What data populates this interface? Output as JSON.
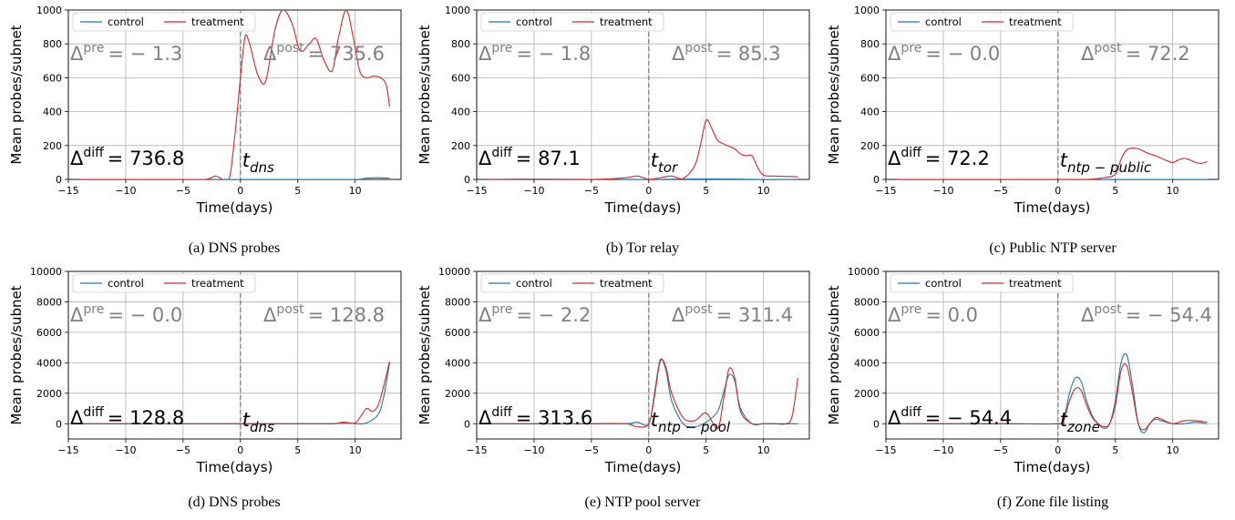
{
  "colors": {
    "control": "#1f77b4",
    "treatment": "#d62728",
    "annotation_gray": "#808080",
    "grid": "#b0b0b0",
    "event_line": "#808080"
  },
  "common": {
    "xlabel": "Time(days)",
    "ylabel": "Mean probes/subnet",
    "legend": [
      "control",
      "treatment"
    ]
  },
  "chart_data": [
    {
      "type": "line",
      "caption": "(a) DNS probes",
      "xlim": [
        -15,
        14
      ],
      "ylim": [
        0,
        1000
      ],
      "x_ticks": [
        -15,
        -10,
        -5,
        0,
        5,
        10
      ],
      "y_ticks": [
        0,
        200,
        400,
        600,
        800,
        1000
      ],
      "legend_position": "upper-left",
      "pre_label": "Δ",
      "pre_sup": "pre",
      "pre_value": "= − 1.3",
      "post_label": "Δ",
      "post_sup": "post",
      "post_value": "= 735.6",
      "diff_label": "Δ",
      "diff_sup": "diff",
      "diff_value": "= 736.8",
      "event_label": "t",
      "event_sub": "dns",
      "series": [
        {
          "name": "control",
          "x": [
            -14,
            -10,
            -5,
            0,
            5,
            10,
            11,
            12,
            13
          ],
          "y": [
            0,
            0,
            0,
            0,
            0,
            0,
            8,
            10,
            8
          ]
        },
        {
          "name": "treatment",
          "x": [
            -14,
            -5,
            -3,
            -2.2,
            -1.8,
            -1,
            -0.5,
            0,
            0.4,
            0.8,
            1.5,
            2.2,
            3,
            3.7,
            4.5,
            5.2,
            6,
            6.6,
            7.3,
            8,
            8.5,
            9.2,
            9.8,
            10.4,
            11,
            11.6,
            12.2,
            12.7,
            13
          ],
          "y": [
            0,
            0,
            0,
            20,
            10,
            0,
            250,
            600,
            840,
            800,
            620,
            580,
            880,
            1000,
            920,
            760,
            800,
            830,
            700,
            640,
            820,
            1000,
            850,
            640,
            600,
            610,
            600,
            560,
            430
          ]
        }
      ]
    },
    {
      "type": "line",
      "caption": "(b) Tor relay",
      "xlim": [
        -15,
        14
      ],
      "ylim": [
        0,
        1000
      ],
      "x_ticks": [
        -15,
        -10,
        -5,
        0,
        5,
        10
      ],
      "y_ticks": [
        0,
        200,
        400,
        600,
        800,
        1000
      ],
      "legend_position": "upper-left",
      "pre_label": "Δ",
      "pre_sup": "pre",
      "pre_value": "= − 1.8",
      "post_label": "Δ",
      "post_sup": "post",
      "post_value": "= 85.3",
      "diff_label": "Δ",
      "diff_sup": "diff",
      "diff_value": "= 87.1",
      "event_label": "t",
      "event_sub": "tor",
      "series": [
        {
          "name": "control",
          "x": [
            -14,
            -10,
            -5,
            0,
            5,
            10,
            13
          ],
          "y": [
            0,
            2,
            0,
            0,
            3,
            0,
            0
          ]
        },
        {
          "name": "treatment",
          "x": [
            -14,
            -5,
            -2,
            -1,
            0,
            1,
            2,
            3,
            4,
            4.5,
            5,
            5.5,
            6,
            6.5,
            7,
            7.5,
            8,
            8.5,
            9,
            9.5,
            10,
            11,
            12,
            13
          ],
          "y": [
            0,
            0,
            10,
            20,
            0,
            10,
            20,
            5,
            80,
            200,
            350,
            300,
            230,
            210,
            195,
            180,
            150,
            140,
            140,
            70,
            25,
            20,
            18,
            15
          ]
        }
      ]
    },
    {
      "type": "line",
      "caption": "(c) Public NTP server",
      "xlim": [
        -15,
        14
      ],
      "ylim": [
        0,
        1000
      ],
      "x_ticks": [
        -15,
        -10,
        -5,
        0,
        5,
        10
      ],
      "y_ticks": [
        0,
        200,
        400,
        600,
        800,
        1000
      ],
      "legend_position": "upper-left",
      "pre_label": "Δ",
      "pre_sup": "pre",
      "pre_value": "= − 0.0",
      "post_label": "Δ",
      "post_sup": "post",
      "post_value": "= 72.2",
      "diff_label": "Δ",
      "diff_sup": "diff",
      "diff_value": "= 72.2",
      "event_label": "t",
      "event_sub": "ntp − public",
      "series": [
        {
          "name": "control",
          "x": [
            -14,
            -5,
            0,
            5,
            10,
            13
          ],
          "y": [
            0,
            0,
            0,
            0,
            0,
            0
          ]
        },
        {
          "name": "treatment",
          "x": [
            -14,
            -5,
            0,
            2,
            3,
            4,
            5,
            5.5,
            6,
            6.5,
            7,
            7.5,
            8,
            8.5,
            9,
            9.5,
            10,
            10.5,
            11,
            11.5,
            12,
            12.5,
            13
          ],
          "y": [
            0,
            0,
            0,
            0,
            2,
            10,
            30,
            120,
            175,
            185,
            180,
            165,
            150,
            140,
            125,
            110,
            100,
            115,
            125,
            115,
            100,
            95,
            105
          ]
        }
      ]
    },
    {
      "type": "line",
      "caption": "(d) DNS probes",
      "xlim": [
        -15,
        14
      ],
      "ylim": [
        -1000,
        10000
      ],
      "x_ticks": [
        -15,
        -10,
        -5,
        0,
        5,
        10
      ],
      "y_ticks": [
        0,
        2000,
        4000,
        6000,
        8000,
        10000
      ],
      "legend_position": "upper-left",
      "pre_label": "Δ",
      "pre_sup": "pre",
      "pre_value": "= − 0.0",
      "post_label": "Δ",
      "post_sup": "post",
      "post_value": "= 128.8",
      "diff_label": "Δ",
      "diff_sup": "diff",
      "diff_value": "= 128.8",
      "event_label": "t",
      "event_sub": "dns",
      "series": [
        {
          "name": "control",
          "x": [
            -14,
            -5,
            0,
            5,
            8,
            9,
            10,
            11,
            12,
            12.5,
            13
          ],
          "y": [
            0,
            0,
            0,
            0,
            0,
            100,
            0,
            50,
            600,
            1800,
            4000
          ]
        },
        {
          "name": "treatment",
          "x": [
            -14,
            -5,
            0,
            5,
            8,
            9,
            10,
            10.5,
            11,
            11.5,
            12,
            12.5,
            13
          ],
          "y": [
            0,
            0,
            0,
            0,
            0,
            50,
            50,
            500,
            1000,
            800,
            1200,
            2500,
            4100
          ]
        }
      ]
    },
    {
      "type": "line",
      "caption": "(e) NTP pool server",
      "xlim": [
        -15,
        14
      ],
      "ylim": [
        -1000,
        10000
      ],
      "x_ticks": [
        -15,
        -10,
        -5,
        0,
        5,
        10
      ],
      "y_ticks": [
        0,
        2000,
        4000,
        6000,
        8000,
        10000
      ],
      "legend_position": "upper-left",
      "pre_label": "Δ",
      "pre_sup": "pre",
      "pre_value": "= − 2.2",
      "post_label": "Δ",
      "post_sup": "post",
      "post_value": "= 311.4",
      "diff_label": "Δ",
      "diff_sup": "diff",
      "diff_value": "= 313.6",
      "event_label": "t",
      "event_sub": "ntp − pool",
      "series": [
        {
          "name": "control",
          "x": [
            -14,
            -5,
            -2,
            -1,
            0,
            0.5,
            1,
            1.5,
            2,
            3,
            4,
            5,
            6,
            6.5,
            7,
            7.5,
            8,
            9,
            10,
            11,
            12,
            13
          ],
          "y": [
            0,
            0,
            0,
            100,
            0,
            2000,
            4200,
            3500,
            1500,
            0,
            -200,
            100,
            800,
            2000,
            3200,
            2800,
            1000,
            0,
            0,
            0,
            0,
            0
          ]
        },
        {
          "name": "treatment",
          "x": [
            -14,
            -5,
            -2,
            -1,
            0,
            0.5,
            1,
            1.5,
            2,
            3,
            4,
            5,
            6,
            6.5,
            7,
            7.5,
            8,
            9,
            10,
            11,
            12,
            12.5,
            13
          ],
          "y": [
            0,
            0,
            0,
            -200,
            0,
            1800,
            4100,
            3700,
            2000,
            400,
            200,
            700,
            -300,
            1500,
            3600,
            3000,
            800,
            0,
            0,
            0,
            0,
            500,
            3000
          ]
        }
      ]
    },
    {
      "type": "line",
      "caption": "(f) Zone file listing",
      "xlim": [
        -15,
        14
      ],
      "ylim": [
        -1000,
        10000
      ],
      "x_ticks": [
        -15,
        -10,
        -5,
        0,
        5,
        10
      ],
      "y_ticks": [
        0,
        2000,
        4000,
        6000,
        8000,
        10000
      ],
      "legend_position": "upper-left",
      "pre_label": "Δ",
      "pre_sup": "pre",
      "pre_value": "= 0.0",
      "post_label": "Δ",
      "post_sup": "post",
      "post_value": "= − 54.4",
      "diff_label": "Δ",
      "diff_sup": "diff",
      "diff_value": "= − 54.4",
      "event_label": "t",
      "event_sub": "zone",
      "series": [
        {
          "name": "control",
          "x": [
            -14,
            -5,
            0,
            0.5,
            1,
            1.5,
            2,
            2.5,
            3,
            3.5,
            4,
            4.5,
            5,
            5.5,
            6,
            6.5,
            7,
            7.5,
            8,
            8.5,
            9,
            10,
            11,
            12,
            13
          ],
          "y": [
            0,
            0,
            0,
            300,
            2000,
            3000,
            2800,
            1500,
            500,
            0,
            -300,
            0,
            1500,
            4000,
            4500,
            2500,
            0,
            -600,
            0,
            300,
            200,
            0,
            0,
            100,
            0
          ]
        },
        {
          "name": "treatment",
          "x": [
            -14,
            -5,
            0,
            0.5,
            1,
            1.5,
            2,
            2.5,
            3,
            3.5,
            4,
            4.5,
            5,
            5.5,
            6,
            6.5,
            7,
            7.5,
            8,
            8.5,
            9,
            10,
            11,
            12,
            13
          ],
          "y": [
            0,
            0,
            0,
            200,
            1500,
            2300,
            2200,
            1200,
            400,
            0,
            -200,
            0,
            1200,
            3500,
            3800,
            2000,
            0,
            -400,
            0,
            400,
            300,
            0,
            200,
            200,
            100
          ]
        }
      ]
    }
  ]
}
